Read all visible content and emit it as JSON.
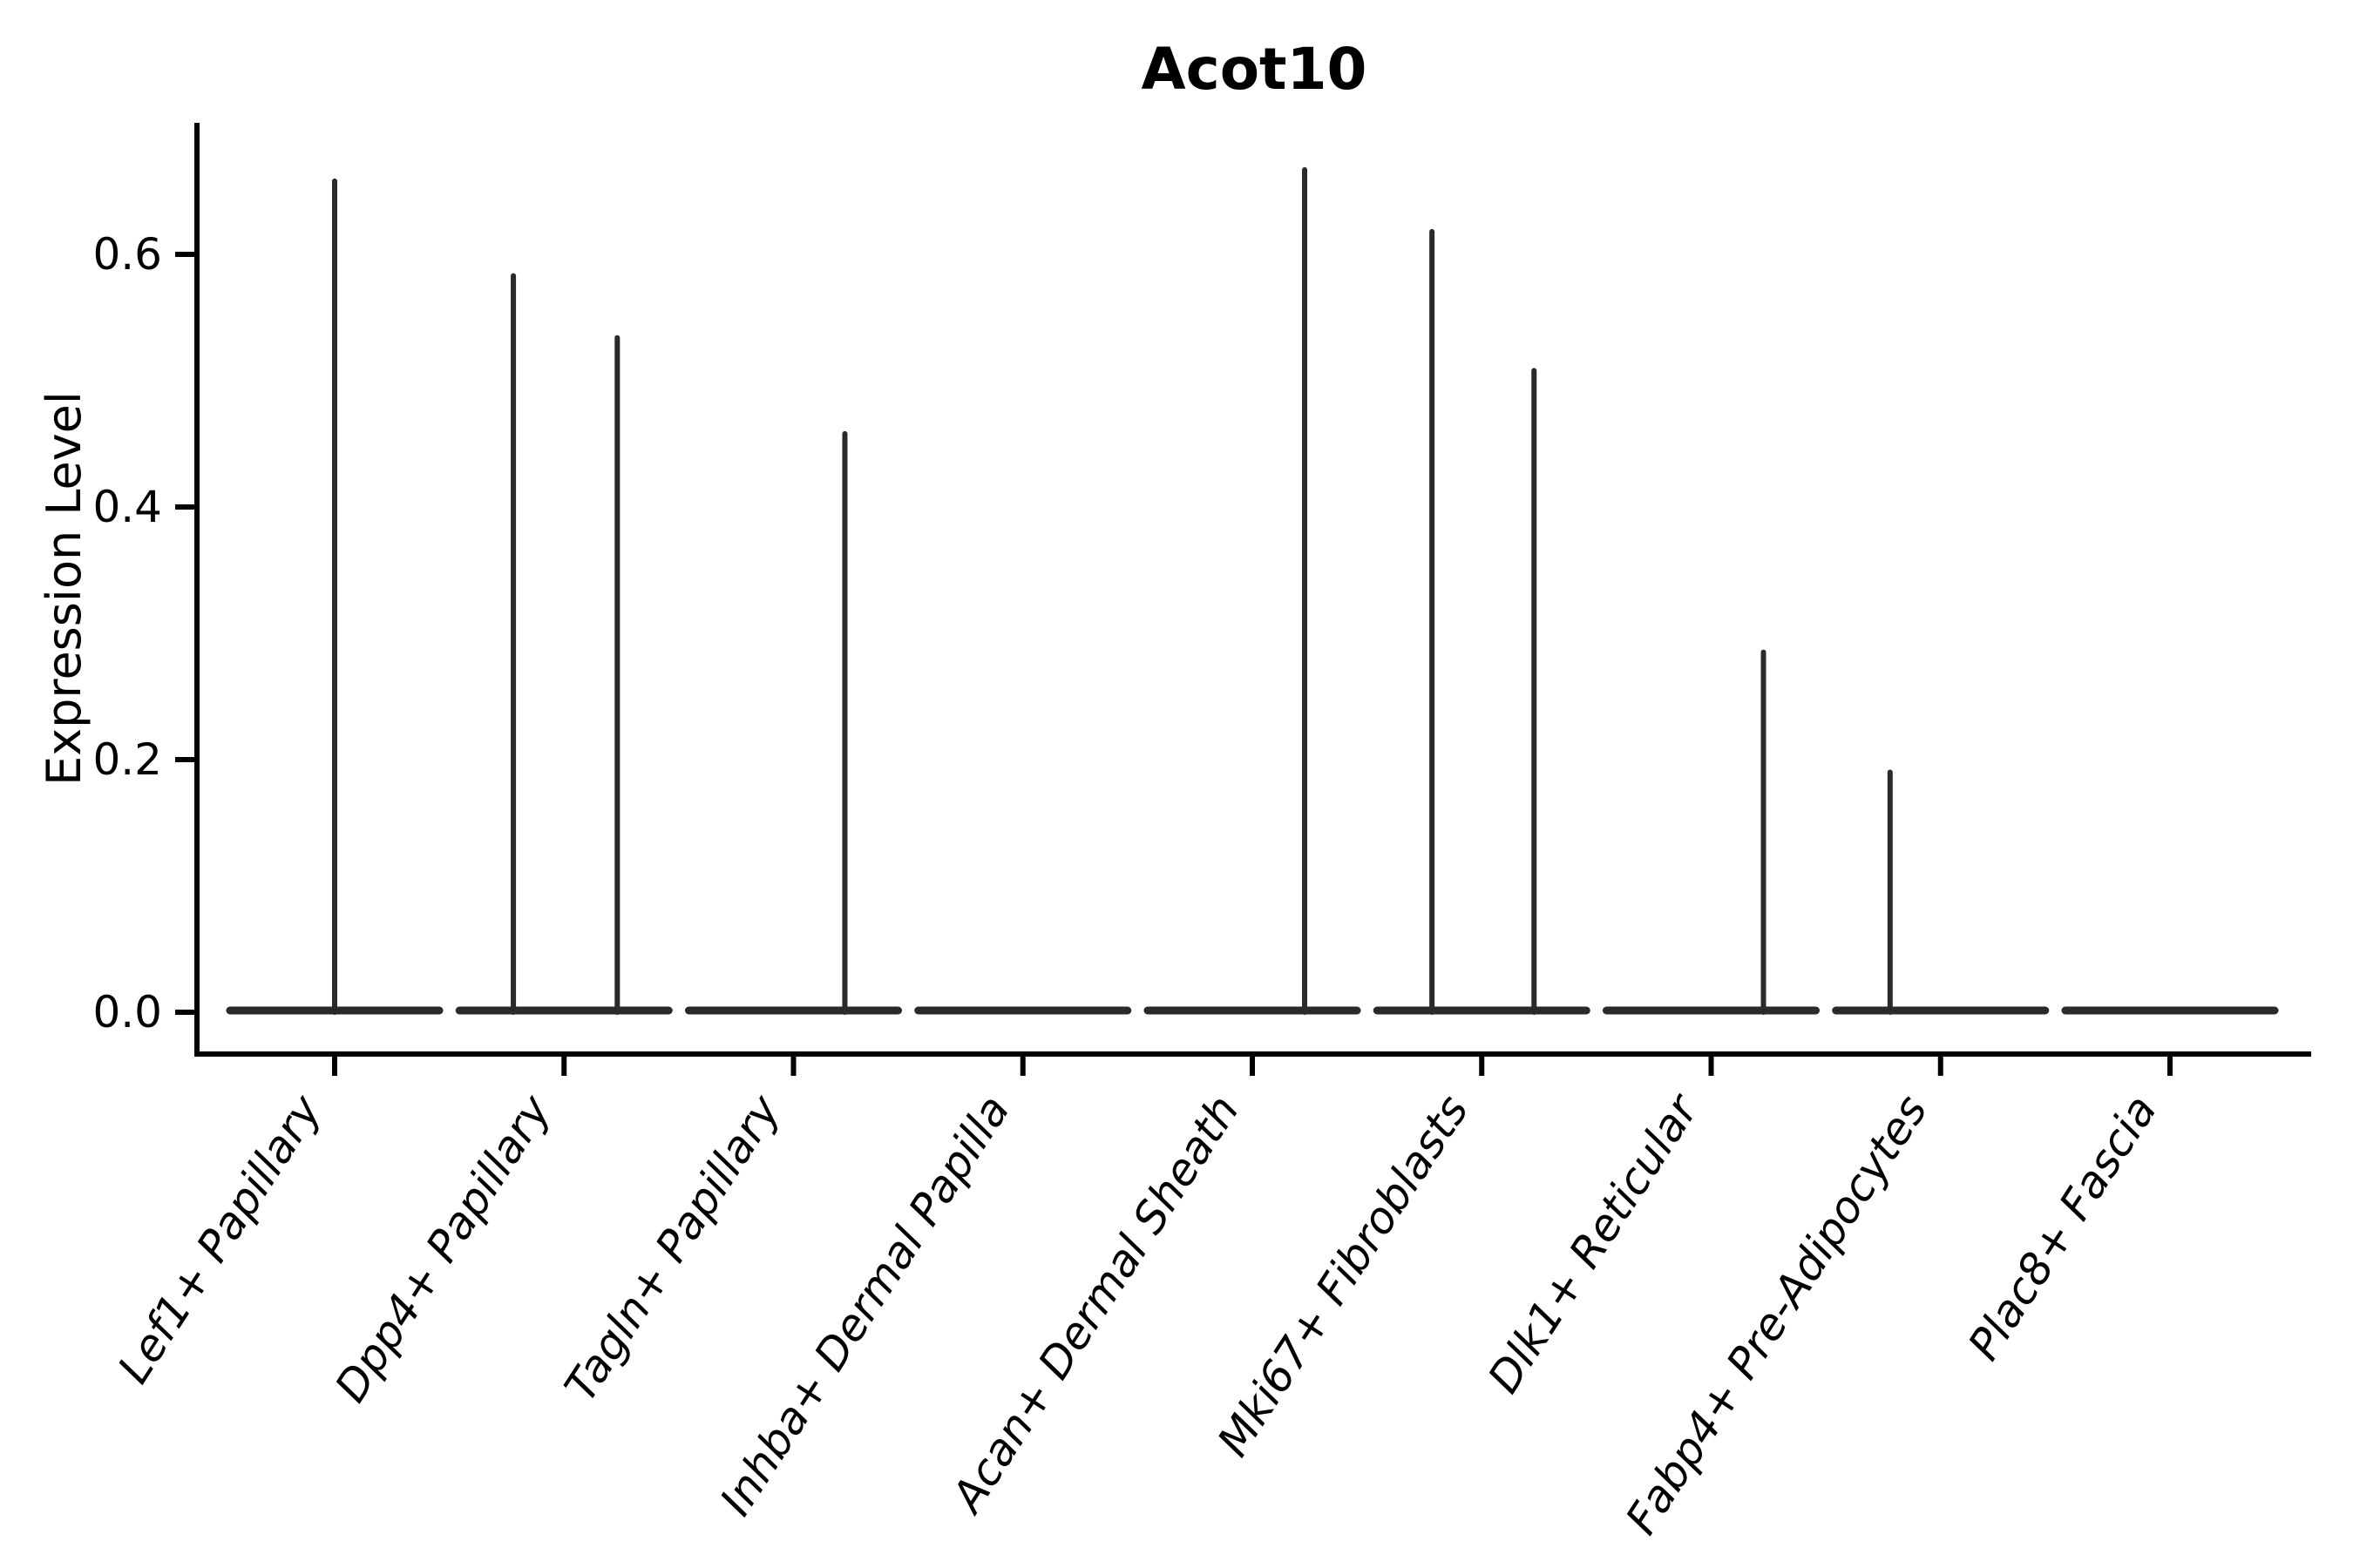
{
  "chart_data": {
    "type": "violin",
    "title": "Acot10",
    "ylabel": "Expression Level",
    "xlabel": "",
    "ylim": [
      -0.033,
      0.704
    ],
    "yticks": [
      0.0,
      0.2,
      0.4,
      0.6
    ],
    "ytick_labels": [
      "0.0",
      "0.2",
      "0.4",
      "0.6"
    ],
    "grid": false,
    "legend": "none",
    "background": "#ffffff",
    "axis_color": "#000000",
    "violin_color": "#2a2a2a",
    "categories": [
      "Lef1+ Papillary",
      "Dpp4+ Papillary",
      "Tagln+ Papillary",
      "Inhba+ Dermal Papilla",
      "Acan+ Dermal Sheath",
      "Mki67+ Fibroblasts",
      "Dlk1+ Reticular",
      "Fabp4+ Pre-Adipocytes",
      "Plac8+ Fascia"
    ],
    "series": [
      {
        "name": "Lef1+ Papillary",
        "base_value": 0.0,
        "base_halfwidth": 0.456,
        "spikes": [
          {
            "offset": 0.0,
            "value": 0.658
          }
        ]
      },
      {
        "name": "Dpp4+ Papillary",
        "base_value": 0.0,
        "base_halfwidth": 0.456,
        "spikes": [
          {
            "offset": -0.221,
            "value": 0.583
          },
          {
            "offset": 0.232,
            "value": 0.534
          }
        ]
      },
      {
        "name": "Tagln+ Papillary",
        "base_value": 0.0,
        "base_halfwidth": 0.456,
        "spikes": [
          {
            "offset": 0.224,
            "value": 0.458
          }
        ]
      },
      {
        "name": "Inhba+ Dermal Papilla",
        "base_value": 0.0,
        "base_halfwidth": 0.456,
        "spikes": []
      },
      {
        "name": "Acan+ Dermal Sheath",
        "base_value": 0.0,
        "base_halfwidth": 0.456,
        "spikes": [
          {
            "offset": 0.228,
            "value": 0.667
          }
        ]
      },
      {
        "name": "Mki67+ Fibroblasts",
        "base_value": 0.0,
        "base_halfwidth": 0.456,
        "spikes": [
          {
            "offset": -0.217,
            "value": 0.618
          },
          {
            "offset": 0.228,
            "value": 0.508
          }
        ]
      },
      {
        "name": "Dlk1+ Reticular",
        "base_value": 0.0,
        "base_halfwidth": 0.456,
        "spikes": [
          {
            "offset": 0.228,
            "value": 0.285
          }
        ]
      },
      {
        "name": "Fabp4+ Pre-Adipocytes",
        "base_value": 0.0,
        "base_halfwidth": 0.456,
        "spikes": [
          {
            "offset": -0.22,
            "value": 0.19
          }
        ]
      },
      {
        "name": "Plac8+ Fascia",
        "base_value": 0.0,
        "base_halfwidth": 0.456,
        "spikes": []
      }
    ]
  }
}
